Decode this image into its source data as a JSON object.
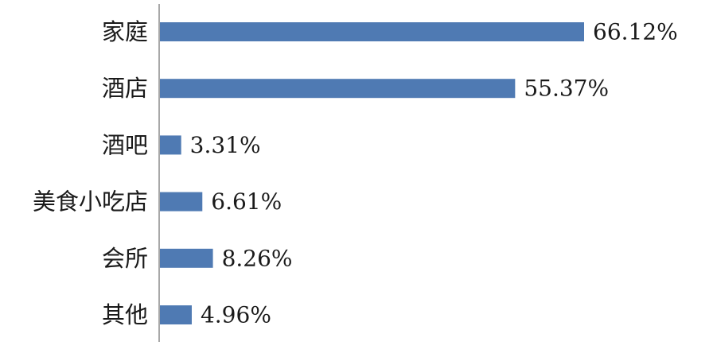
{
  "chart_data": {
    "type": "bar",
    "orientation": "horizontal",
    "categories": [
      "家庭",
      "酒店",
      "酒吧",
      "美食小吃店",
      "会所",
      "其他"
    ],
    "values": [
      66.12,
      55.37,
      3.31,
      6.61,
      8.26,
      4.96
    ],
    "value_labels": [
      "66.12%",
      "55.37%",
      "3.31%",
      "6.61%",
      "8.26%",
      "4.96%"
    ],
    "title": "",
    "xlabel": "",
    "ylabel": "",
    "xlim": [
      0,
      66.12
    ],
    "grid": false,
    "legend": "none",
    "bar_color": "#4f7ab3"
  }
}
